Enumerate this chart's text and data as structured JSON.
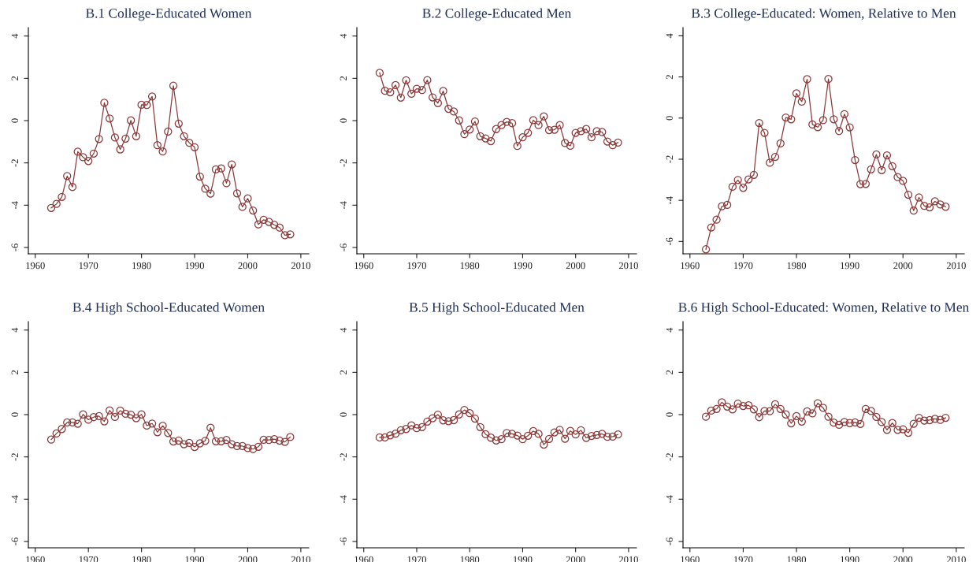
{
  "chart_data": [
    {
      "type": "line",
      "title": "B.1 College-Educated Women",
      "color": "#8b3a3a",
      "marker": "circle",
      "xlim": [
        1958.7,
        2011.5
      ],
      "ylim": [
        -6.3,
        4.4
      ],
      "xticks": [
        1960,
        1970,
        1980,
        1990,
        2000,
        2010
      ],
      "yticks": [
        -6,
        -4,
        -2,
        0,
        2,
        4
      ],
      "x": [
        1963,
        1964,
        1965,
        1966,
        1967,
        1968,
        1969,
        1970,
        1971,
        1972,
        1973,
        1974,
        1975,
        1976,
        1977,
        1978,
        1979,
        1980,
        1981,
        1982,
        1983,
        1984,
        1985,
        1986,
        1987,
        1988,
        1989,
        1990,
        1991,
        1992,
        1993,
        1994,
        1995,
        1996,
        1997,
        1998,
        1999,
        2000,
        2001,
        2002,
        2003,
        2004,
        2005,
        2006,
        2007,
        2008
      ],
      "values": [
        -4.13,
        -3.94,
        -3.61,
        -2.62,
        -3.14,
        -1.47,
        -1.73,
        -1.91,
        -1.56,
        -0.87,
        0.84,
        0.1,
        -0.8,
        -1.36,
        -0.85,
        0.01,
        -0.74,
        0.75,
        0.74,
        1.14,
        -1.16,
        -1.46,
        -0.52,
        1.65,
        -0.14,
        -0.74,
        -1.05,
        -1.26,
        -2.65,
        -3.22,
        -3.45,
        -2.31,
        -2.26,
        -2.96,
        -2.07,
        -3.44,
        -4.08,
        -3.68,
        -4.25,
        -4.91,
        -4.69,
        -4.79,
        -4.93,
        -5.06,
        -5.42,
        -5.38
      ]
    },
    {
      "type": "line",
      "title": "B.2 College-Educated Men",
      "color": "#8b3a3a",
      "marker": "circle",
      "xlim": [
        1958.7,
        2011.5
      ],
      "ylim": [
        -6.3,
        4.4
      ],
      "xticks": [
        1960,
        1970,
        1980,
        1990,
        2000,
        2010
      ],
      "yticks": [
        -6,
        -4,
        -2,
        0,
        2,
        4
      ],
      "x": [
        1963,
        1964,
        1965,
        1966,
        1967,
        1968,
        1969,
        1970,
        1971,
        1972,
        1973,
        1974,
        1975,
        1976,
        1977,
        1978,
        1979,
        1980,
        1981,
        1982,
        1983,
        1984,
        1985,
        1986,
        1987,
        1988,
        1989,
        1990,
        1991,
        1992,
        1993,
        1994,
        1995,
        1996,
        1997,
        1998,
        1999,
        2000,
        2001,
        2002,
        2003,
        2004,
        2005,
        2006,
        2007,
        2008
      ],
      "values": [
        2.26,
        1.41,
        1.34,
        1.68,
        1.09,
        1.91,
        1.27,
        1.51,
        1.45,
        1.92,
        1.1,
        0.83,
        1.4,
        0.56,
        0.43,
        0.01,
        -0.64,
        -0.42,
        -0.04,
        -0.74,
        -0.84,
        -0.97,
        -0.4,
        -0.21,
        -0.06,
        -0.12,
        -1.2,
        -0.79,
        -0.58,
        0.02,
        -0.21,
        0.2,
        -0.45,
        -0.43,
        -0.21,
        -1.06,
        -1.19,
        -0.58,
        -0.5,
        -0.4,
        -0.79,
        -0.5,
        -0.54,
        -0.99,
        -1.16,
        -1.04
      ]
    },
    {
      "type": "line",
      "title": "B.3 College-Educated: Women, Relative to Men",
      "color": "#8b3a3a",
      "marker": "circle",
      "xlim": [
        1958.7,
        2011.5
      ],
      "ylim": [
        -6.6,
        4.4
      ],
      "xticks": [
        1960,
        1970,
        1980,
        1990,
        2000,
        2010
      ],
      "yticks": [
        -6,
        -4,
        -2,
        0,
        2,
        4
      ],
      "x": [
        1963,
        1964,
        1965,
        1966,
        1967,
        1968,
        1969,
        1970,
        1971,
        1972,
        1973,
        1974,
        1975,
        1976,
        1977,
        1978,
        1979,
        1980,
        1981,
        1982,
        1983,
        1984,
        1985,
        1986,
        1987,
        1988,
        1989,
        1990,
        1991,
        1992,
        1993,
        1994,
        1995,
        1996,
        1997,
        1998,
        1999,
        2000,
        2001,
        2002,
        2003,
        2004,
        2005,
        2006,
        2007,
        2008
      ],
      "values": [
        -6.38,
        -5.32,
        -4.94,
        -4.29,
        -4.22,
        -3.34,
        -3.01,
        -3.39,
        -2.98,
        -2.76,
        -0.24,
        -0.72,
        -2.17,
        -1.89,
        -1.23,
        0.03,
        -0.06,
        1.2,
        0.8,
        1.89,
        -0.31,
        -0.44,
        -0.1,
        1.9,
        -0.06,
        -0.63,
        0.19,
        -0.45,
        -2.04,
        -3.21,
        -3.2,
        -2.49,
        -1.77,
        -2.53,
        -1.81,
        -2.34,
        -2.87,
        -3.05,
        -3.73,
        -4.5,
        -3.86,
        -4.27,
        -4.34,
        -4.05,
        -4.2,
        -4.31
      ]
    },
    {
      "type": "line",
      "title": "B.4 High School-Educated Women",
      "color": "#8b3a3a",
      "marker": "circle",
      "xlim": [
        1958.7,
        2011.5
      ],
      "ylim": [
        -6.3,
        4.4
      ],
      "xticks": [
        1960,
        1970,
        1980,
        1990,
        2000,
        2010
      ],
      "yticks": [
        -6,
        -4,
        -2,
        0,
        2,
        4
      ],
      "x": [
        1963,
        1964,
        1965,
        1966,
        1967,
        1968,
        1969,
        1970,
        1971,
        1972,
        1973,
        1974,
        1975,
        1976,
        1977,
        1978,
        1979,
        1980,
        1981,
        1982,
        1983,
        1984,
        1985,
        1986,
        1987,
        1988,
        1989,
        1990,
        1991,
        1992,
        1993,
        1994,
        1995,
        1996,
        1997,
        1998,
        1999,
        2000,
        2001,
        2002,
        2003,
        2004,
        2005,
        2006,
        2007,
        2008
      ],
      "values": [
        -1.18,
        -0.89,
        -0.68,
        -0.37,
        -0.37,
        -0.43,
        0.01,
        -0.24,
        -0.12,
        -0.07,
        -0.32,
        0.2,
        -0.11,
        0.19,
        0.04,
        0.0,
        -0.17,
        0.01,
        -0.52,
        -0.42,
        -0.83,
        -0.53,
        -0.87,
        -1.27,
        -1.23,
        -1.4,
        -1.34,
        -1.53,
        -1.36,
        -1.24,
        -0.62,
        -1.26,
        -1.26,
        -1.2,
        -1.4,
        -1.49,
        -1.49,
        -1.58,
        -1.63,
        -1.52,
        -1.19,
        -1.2,
        -1.16,
        -1.23,
        -1.29,
        -1.06
      ]
    },
    {
      "type": "line",
      "title": "B.5 High School-Educated Men",
      "color": "#8b3a3a",
      "marker": "circle",
      "xlim": [
        1958.7,
        2011.5
      ],
      "ylim": [
        -6.3,
        4.4
      ],
      "xticks": [
        1960,
        1970,
        1980,
        1990,
        2000,
        2010
      ],
      "yticks": [
        -6,
        -4,
        -2,
        0,
        2,
        4
      ],
      "x": [
        1963,
        1964,
        1965,
        1966,
        1967,
        1968,
        1969,
        1970,
        1971,
        1972,
        1973,
        1974,
        1975,
        1976,
        1977,
        1978,
        1979,
        1980,
        1981,
        1982,
        1983,
        1984,
        1985,
        1986,
        1987,
        1988,
        1989,
        1990,
        1991,
        1992,
        1993,
        1994,
        1995,
        1996,
        1997,
        1998,
        1999,
        2000,
        2001,
        2002,
        2003,
        2004,
        2005,
        2006,
        2007,
        2008
      ],
      "values": [
        -1.08,
        -1.08,
        -0.98,
        -0.9,
        -0.74,
        -0.68,
        -0.51,
        -0.64,
        -0.59,
        -0.33,
        -0.17,
        0.0,
        -0.27,
        -0.31,
        -0.26,
        0.01,
        0.22,
        0.07,
        -0.19,
        -0.59,
        -0.93,
        -1.09,
        -1.22,
        -1.16,
        -0.87,
        -0.91,
        -0.99,
        -1.16,
        -1.0,
        -0.78,
        -0.91,
        -1.42,
        -1.15,
        -0.84,
        -0.72,
        -1.14,
        -0.77,
        -0.94,
        -0.74,
        -1.1,
        -1.01,
        -0.96,
        -0.91,
        -1.05,
        -1.04,
        -0.94
      ]
    },
    {
      "type": "line",
      "title": "B.6 High School-Educated: Women, Relative to Men",
      "color": "#8b3a3a",
      "marker": "circle",
      "xlim": [
        1958.7,
        2011.5
      ],
      "ylim": [
        -6.3,
        4.4
      ],
      "xticks": [
        1960,
        1970,
        1980,
        1990,
        2000,
        2010
      ],
      "yticks": [
        -6,
        -4,
        -2,
        0,
        2,
        4
      ],
      "x": [
        1963,
        1964,
        1965,
        1966,
        1967,
        1968,
        1969,
        1970,
        1971,
        1972,
        1973,
        1974,
        1975,
        1976,
        1977,
        1978,
        1979,
        1980,
        1981,
        1982,
        1983,
        1984,
        1985,
        1986,
        1987,
        1988,
        1989,
        1990,
        1991,
        1992,
        1993,
        1994,
        1995,
        1996,
        1997,
        1998,
        1999,
        2000,
        2001,
        2002,
        2003,
        2004,
        2005,
        2006,
        2007,
        2008
      ],
      "values": [
        -0.1,
        0.19,
        0.27,
        0.58,
        0.38,
        0.25,
        0.52,
        0.41,
        0.44,
        0.25,
        -0.12,
        0.17,
        0.16,
        0.49,
        0.27,
        0.01,
        -0.41,
        -0.07,
        -0.33,
        0.15,
        0.06,
        0.54,
        0.32,
        -0.1,
        -0.38,
        -0.48,
        -0.35,
        -0.4,
        -0.37,
        -0.44,
        0.27,
        0.17,
        -0.11,
        -0.35,
        -0.72,
        -0.4,
        -0.72,
        -0.69,
        -0.86,
        -0.43,
        -0.15,
        -0.28,
        -0.26,
        -0.2,
        -0.25,
        -0.15
      ]
    }
  ]
}
